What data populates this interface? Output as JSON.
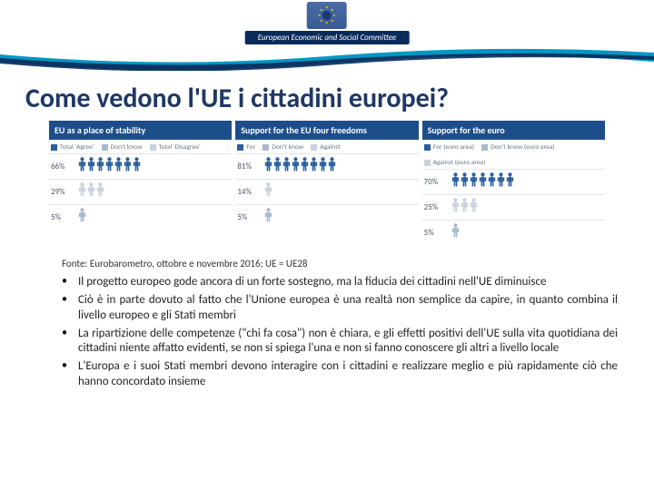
{
  "header": {
    "committee_label": "European Economic and Social Committee"
  },
  "title": "Come vedono l'UE i cittadini europei?",
  "colors": {
    "panel_head_bg": "#1d4e89",
    "person_primary": "#2a5f9e",
    "person_light": "#a9b8cc",
    "person_muted": "#c9d2de"
  },
  "panels": [
    {
      "head": "EU as a place of stability",
      "legend": [
        {
          "label": "Total 'Agree'",
          "color": "#2a5f9e"
        },
        {
          "label": "Don't know",
          "color": "#a9b8cc"
        },
        {
          "label": "Total 'Disagree'",
          "color": "#c9d2de"
        }
      ],
      "rows": [
        {
          "pct": "66%",
          "count": 7,
          "color": "#2a5f9e"
        },
        {
          "pct": "29%",
          "count": 3,
          "color": "#c9d2de"
        },
        {
          "pct": "5%",
          "count": 1,
          "color": "#a9b8cc"
        }
      ]
    },
    {
      "head": "Support for the EU four freedoms",
      "legend": [
        {
          "label": "For",
          "color": "#2a5f9e"
        },
        {
          "label": "Don't know",
          "color": "#a9b8cc"
        },
        {
          "label": "Against",
          "color": "#c9d2de"
        }
      ],
      "rows": [
        {
          "pct": "81%",
          "count": 8,
          "color": "#2a5f9e"
        },
        {
          "pct": "14%",
          "count": 1,
          "color": "#c9d2de"
        },
        {
          "pct": "5%",
          "count": 1,
          "color": "#a9b8cc"
        }
      ]
    },
    {
      "head": "Support for the euro",
      "legend": [
        {
          "label": "For (euro area)",
          "color": "#2a5f9e"
        },
        {
          "label": "Don't know (euro area)",
          "color": "#a9b8cc"
        },
        {
          "label": "Against (euro area)",
          "color": "#c9d2de"
        }
      ],
      "rows": [
        {
          "pct": "70%",
          "count": 7,
          "color": "#2a5f9e"
        },
        {
          "pct": "25%",
          "count": 3,
          "color": "#c9d2de"
        },
        {
          "pct": "5%",
          "count": 1,
          "color": "#a9b8cc"
        }
      ]
    }
  ],
  "source": "Fonte: Eurobarometro, ottobre e novembre 2016; UE = UE28",
  "bullets": [
    "Il progetto europeo gode ancora di un forte sostegno, ma la fiducia dei cittadini nell'UE diminuisce",
    "Ciò è in parte dovuto al fatto che l'Unione europea è una realtà non semplice da capire, in quanto combina il livello europeo e gli Stati membri",
    "La ripartizione delle competenze (\"chi fa cosa\") non è chiara, e gli effetti positivi dell'UE sulla vita quotidiana dei cittadini niente affatto evidenti, se non si spiega l'una e non si fanno conoscere gli altri a livello locale",
    "L'Europa e i suoi Stati membri devono interagire con i cittadini e realizzare meglio e più rapidamente ciò che hanno concordato insieme"
  ]
}
